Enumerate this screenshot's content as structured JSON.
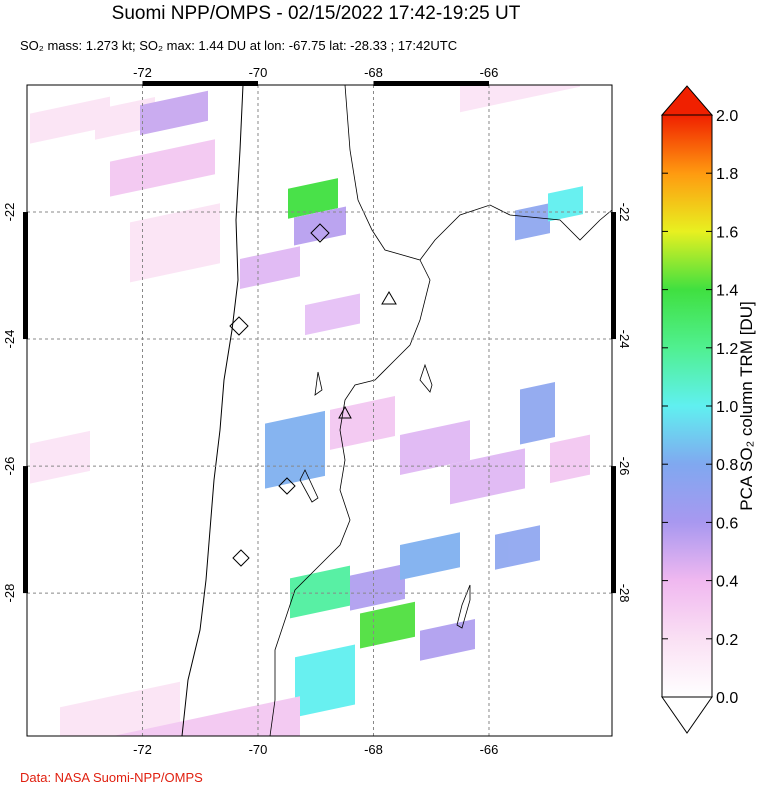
{
  "header": {
    "title": "Suomi NPP/OMPS - 02/15/2022 17:42-19:25 UT",
    "subtitle": "SO₂ mass: 1.273 kt; SO₂ max: 1.44 DU at lon: -67.75 lat: -28.33 ; 17:42UTC"
  },
  "map": {
    "lon_range": [
      -74,
      -63.87
    ],
    "lat_range": [
      -20,
      -30.25
    ],
    "lon_ticks": [
      -72,
      -70,
      -68,
      -66
    ],
    "lat_ticks": [
      -22,
      -24,
      -26,
      -28
    ]
  },
  "colorbar": {
    "label": "PCA SO₂ column TRM [DU]",
    "range": [
      0,
      2
    ],
    "ticks": [
      {
        "value": 0,
        "label": "0.0"
      },
      0.2,
      0.4,
      0.6,
      0.8,
      {
        "value": 1,
        "label": "1.0"
      },
      1.2,
      1.4,
      1.6,
      1.8,
      {
        "value": 2,
        "label": "2.0"
      }
    ]
  },
  "footer": {
    "credit": "Data: NASA Suomi-NPP/OMPS"
  }
}
